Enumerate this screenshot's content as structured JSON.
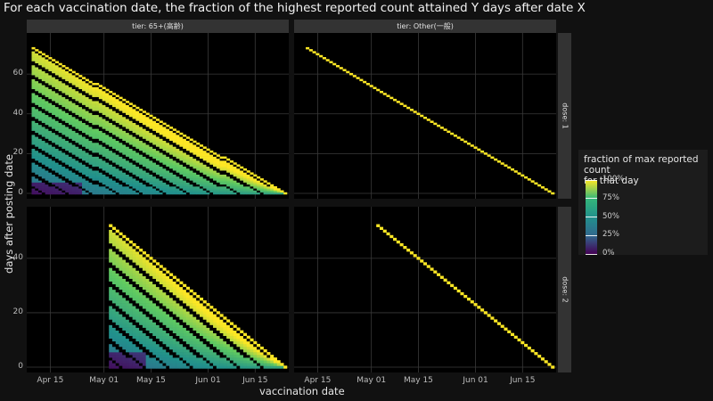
{
  "title": "For each vaccination date, the fraction of the highest reported count attained Y days after date X",
  "chart_data": {
    "type": "heatmap",
    "xlabel": "vaccination date",
    "ylabel": "days after posting date",
    "x_ticks": [
      "Apr 15",
      "May 01",
      "May 15",
      "Jun 01",
      "Jun 15"
    ],
    "x_domain": [
      "2021-04-08",
      "2021-06-25"
    ],
    "facet_columns": [
      "tier: 65+(高齢)",
      "tier: Other(一般)"
    ],
    "facet_rows": [
      "dose: 1",
      "dose: 2"
    ],
    "legend": {
      "title": "fraction of max reported count\nfor that day",
      "ticks": [
        "100%",
        "75%",
        "50%",
        "25%",
        "0%"
      ],
      "values": [
        1,
        0.75,
        0.5,
        0.25,
        0
      ],
      "colors": [
        "#fde725",
        "#35b779",
        "#21918c",
        "#31688e",
        "#440154"
      ]
    },
    "panels": [
      {
        "tier": "65+(高齢)",
        "dose": "1",
        "y_ticks": [
          0,
          20,
          40,
          60
        ],
        "y_max": 73,
        "first_date": "2021-04-10",
        "last_date": "2021-06-24",
        "fill": "triangle",
        "pattern": "diagonal bands, yellow (~100%) on most recent days, blue-green to purple (<50%) near 0-20 days for April dates",
        "diagonal_value": 1
      },
      {
        "tier": "Other(一般)",
        "dose": "1",
        "y_ticks": [
          0,
          20,
          40,
          60
        ],
        "y_max": 73,
        "first_date": "2021-04-12",
        "last_date": "2021-06-24",
        "fill": "diagonal-only",
        "diagonal_value": 1
      },
      {
        "tier": "65+(高齢)",
        "dose": "2",
        "y_ticks": [
          0,
          20,
          40
        ],
        "y_max": 52,
        "first_date": "2021-05-03",
        "last_date": "2021-06-24",
        "fill": "triangle",
        "pattern": "diagonal bands, yellow near later days, purple near 0 days for early May",
        "diagonal_value": 1
      },
      {
        "tier": "Other(一般)",
        "dose": "2",
        "y_ticks": [
          0,
          20,
          40
        ],
        "y_max": 52,
        "first_date": "2021-05-03",
        "last_date": "2021-06-24",
        "fill": "diagonal-only",
        "diagonal_value": 1
      }
    ]
  }
}
